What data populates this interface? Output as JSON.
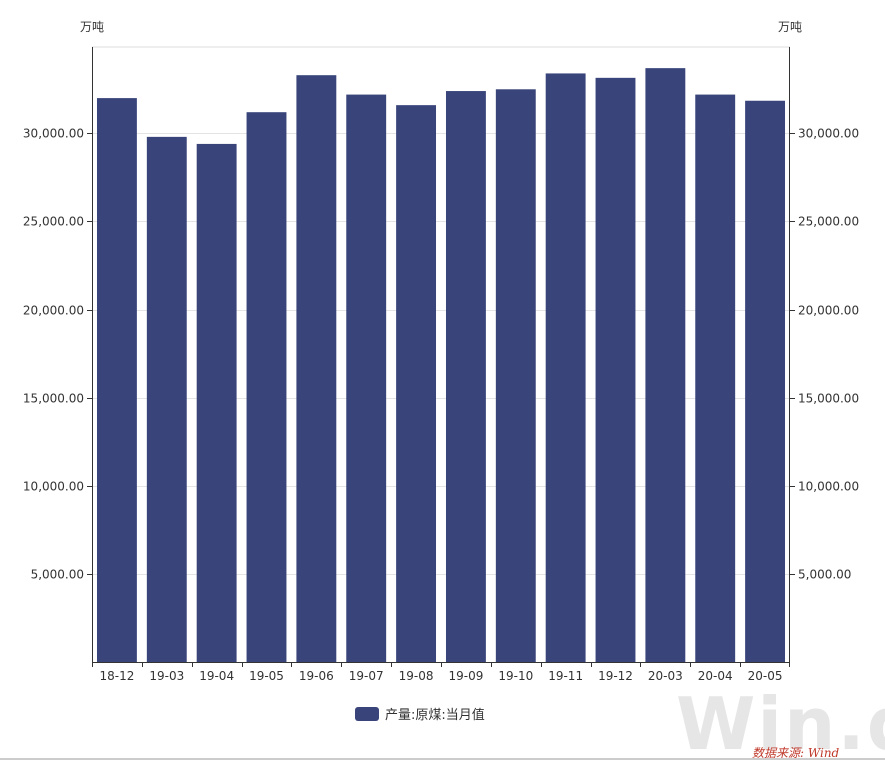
{
  "chart_data": {
    "type": "bar",
    "categories": [
      "18-12",
      "19-03",
      "19-04",
      "19-05",
      "19-06",
      "19-07",
      "19-08",
      "19-09",
      "19-10",
      "19-11",
      "19-12",
      "20-03",
      "20-04",
      "20-05"
    ],
    "series": [
      {
        "name": "产量:原煤:当月值",
        "values": [
          32000,
          29800,
          29400,
          31200,
          33300,
          32200,
          31600,
          32400,
          32500,
          33400,
          33150,
          33700,
          32200,
          31850
        ],
        "color": "#38447a"
      }
    ],
    "ylim": [
      0,
      34900
    ],
    "yticks": [
      5000,
      10000,
      15000,
      20000,
      25000,
      30000
    ],
    "ytick_labels": [
      "5,000.00",
      "10,000.00",
      "15,000.00",
      "20,000.00",
      "25,000.00",
      "30,000.00"
    ],
    "ylabel_left": "万吨",
    "ylabel_right": "万吨",
    "grid": true,
    "legend_position": "bottom-center"
  },
  "footer": {
    "watermark": "Win.d",
    "source": "数据来源: Wind"
  }
}
